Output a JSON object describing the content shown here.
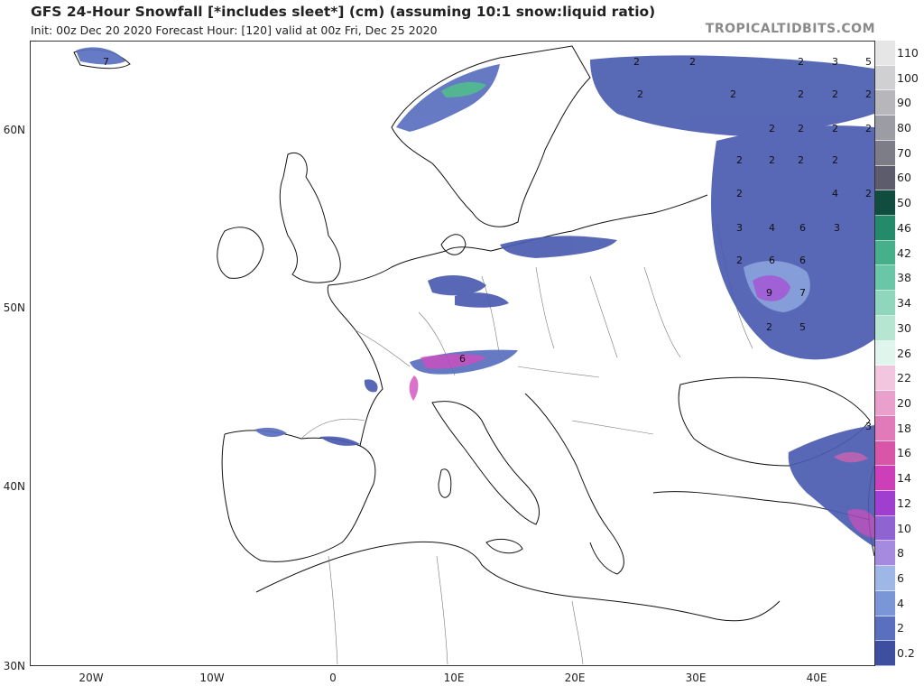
{
  "header": {
    "title": "GFS 24-Hour Snowfall [*includes sleet*] (cm) (assuming 10:1 snow:liquid ratio)",
    "subtitle": "Init: 00z Dec 20 2020   Forecast Hour: [120]   valid at 00z Fri, Dec 25 2020",
    "credit": "TROPICALTIDBITS.COM"
  },
  "axes": {
    "lat_labels": [
      "60N",
      "50N",
      "40N",
      "30N"
    ],
    "lon_labels": [
      "20W",
      "10W",
      "0",
      "10E",
      "20E",
      "30E",
      "40E"
    ]
  },
  "legend": {
    "levels": [
      "0.2",
      "2",
      "4",
      "6",
      "8",
      "10",
      "12",
      "14",
      "16",
      "18",
      "20",
      "22",
      "26",
      "30",
      "34",
      "38",
      "42",
      "46",
      "50",
      "60",
      "70",
      "80",
      "90",
      "100",
      "110"
    ],
    "colors": [
      "#3f4fa0",
      "#5a6fc0",
      "#7b96d6",
      "#9fb7e6",
      "#a58ae0",
      "#8f63d2",
      "#a03ed0",
      "#cc3fb8",
      "#d955a8",
      "#e07ab8",
      "#e9a0cc",
      "#f2c6df",
      "#e0f5ec",
      "#b6e6d2",
      "#8fd6bc",
      "#69c6a6",
      "#45b08a",
      "#238a6a",
      "#114d3e",
      "#5c5c6c",
      "#7d7d88",
      "#9c9ca4",
      "#b7b7bb",
      "#d0d0d2",
      "#e6e6e6"
    ]
  },
  "map_values": {
    "labels": [
      "7",
      "2",
      "2",
      "2",
      "3",
      "5",
      "2",
      "2",
      "2",
      "2",
      "2",
      "2",
      "2",
      "2",
      "2",
      "2",
      "2",
      "2",
      "2",
      "2",
      "4",
      "2",
      "3",
      "4",
      "6",
      "3",
      "2",
      "6",
      "6",
      "9",
      "7",
      "2",
      "5",
      "3",
      "6"
    ]
  }
}
